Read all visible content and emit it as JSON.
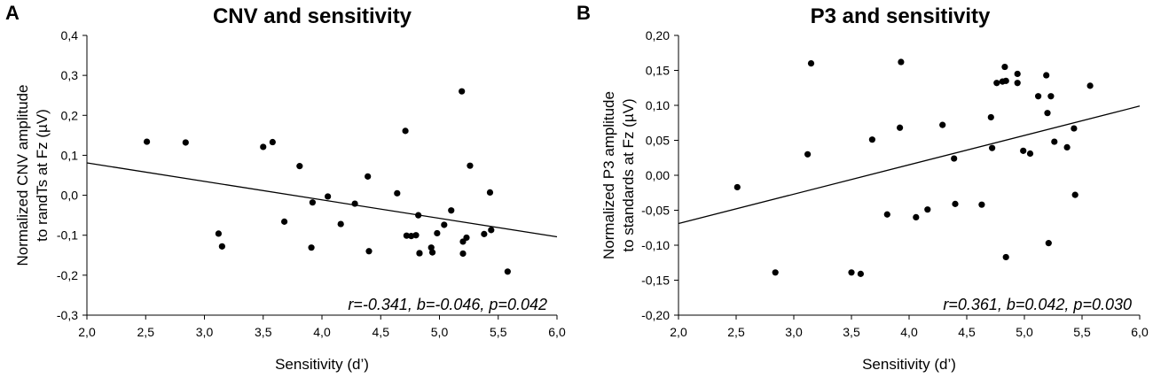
{
  "chart_data": [
    {
      "type": "scatter",
      "panel_label": "A",
      "title": "CNV and sensitivity",
      "xlabel": "Sensitivity (d’)",
      "ylabel_line1": "Normalized CNV amplitude",
      "ylabel_line2": "to randTs at Fz (µV)",
      "xlim": [
        2.0,
        6.0
      ],
      "ylim": [
        -0.3,
        0.4
      ],
      "xticks": [
        "2,0",
        "2,5",
        "3,0",
        "3,5",
        "4,0",
        "4,5",
        "5,0",
        "5,5",
        "6,0"
      ],
      "yticks": [
        "-0,3",
        "-0,2",
        "-0,1",
        "0,0",
        "0,1",
        "0,2",
        "0,3",
        "0,4"
      ],
      "stats": "r=-0.341, b=-0.046, p=0.042",
      "fit_line": {
        "x": [
          2.0,
          6.0
        ],
        "y": [
          0.081,
          -0.104
        ]
      },
      "x": [
        2.51,
        2.84,
        3.12,
        3.15,
        3.5,
        3.58,
        3.68,
        3.81,
        3.91,
        3.92,
        4.05,
        4.16,
        4.28,
        4.39,
        4.4,
        4.64,
        4.71,
        4.72,
        4.76,
        4.8,
        4.82,
        4.83,
        4.83,
        4.93,
        4.94,
        4.98,
        5.04,
        5.1,
        5.19,
        5.2,
        5.2,
        5.23,
        5.26,
        5.38,
        5.43,
        5.44,
        5.58
      ],
      "y": [
        0.134,
        0.132,
        -0.096,
        -0.128,
        0.121,
        0.133,
        -0.066,
        0.073,
        -0.131,
        -0.018,
        -0.003,
        -0.072,
        -0.021,
        0.047,
        -0.14,
        0.005,
        0.161,
        -0.101,
        -0.102,
        -0.1,
        -0.05,
        -0.145,
        -0.145,
        -0.131,
        -0.143,
        -0.095,
        -0.074,
        -0.038,
        0.26,
        -0.116,
        -0.146,
        -0.106,
        0.074,
        -0.097,
        0.007,
        -0.087,
        -0.191
      ]
    },
    {
      "type": "scatter",
      "panel_label": "B",
      "title": "P3 and sensitivity",
      "xlabel": "Sensitivity (d’)",
      "ylabel_line1": "Normalized P3 amplitude",
      "ylabel_line2": "to standards at Fz (µV)",
      "xlim": [
        2.0,
        6.0
      ],
      "ylim": [
        -0.2,
        0.2
      ],
      "xticks": [
        "2,0",
        "2,5",
        "3,0",
        "3,5",
        "4,0",
        "4,5",
        "5,0",
        "5,5",
        "6,0"
      ],
      "yticks": [
        "-0,20",
        "-0,15",
        "-0,10",
        "-0,05",
        "0,00",
        "0,05",
        "0,10",
        "0,15",
        "0,20"
      ],
      "stats": "r=0.361, b=0.042, p=0.030",
      "fit_line": {
        "x": [
          2.0,
          6.0
        ],
        "y": [
          -0.069,
          0.099
        ]
      },
      "x": [
        2.51,
        2.84,
        3.12,
        3.15,
        3.5,
        3.58,
        3.68,
        3.81,
        3.92,
        3.93,
        4.06,
        4.16,
        4.29,
        4.39,
        4.4,
        4.63,
        4.71,
        4.72,
        4.76,
        4.81,
        4.83,
        4.84,
        4.84,
        4.94,
        4.94,
        4.99,
        5.05,
        5.12,
        5.19,
        5.2,
        5.21,
        5.23,
        5.26,
        5.37,
        5.43,
        5.44,
        5.57
      ],
      "y": [
        -0.017,
        -0.139,
        0.03,
        0.16,
        -0.139,
        -0.141,
        0.051,
        -0.056,
        0.068,
        0.162,
        -0.06,
        -0.049,
        0.072,
        0.024,
        -0.041,
        -0.042,
        0.083,
        0.039,
        0.132,
        0.134,
        0.155,
        -0.117,
        0.135,
        0.145,
        0.132,
        0.035,
        0.031,
        0.113,
        0.143,
        0.089,
        -0.097,
        0.113,
        0.048,
        0.04,
        0.067,
        -0.028,
        0.128
      ]
    }
  ]
}
